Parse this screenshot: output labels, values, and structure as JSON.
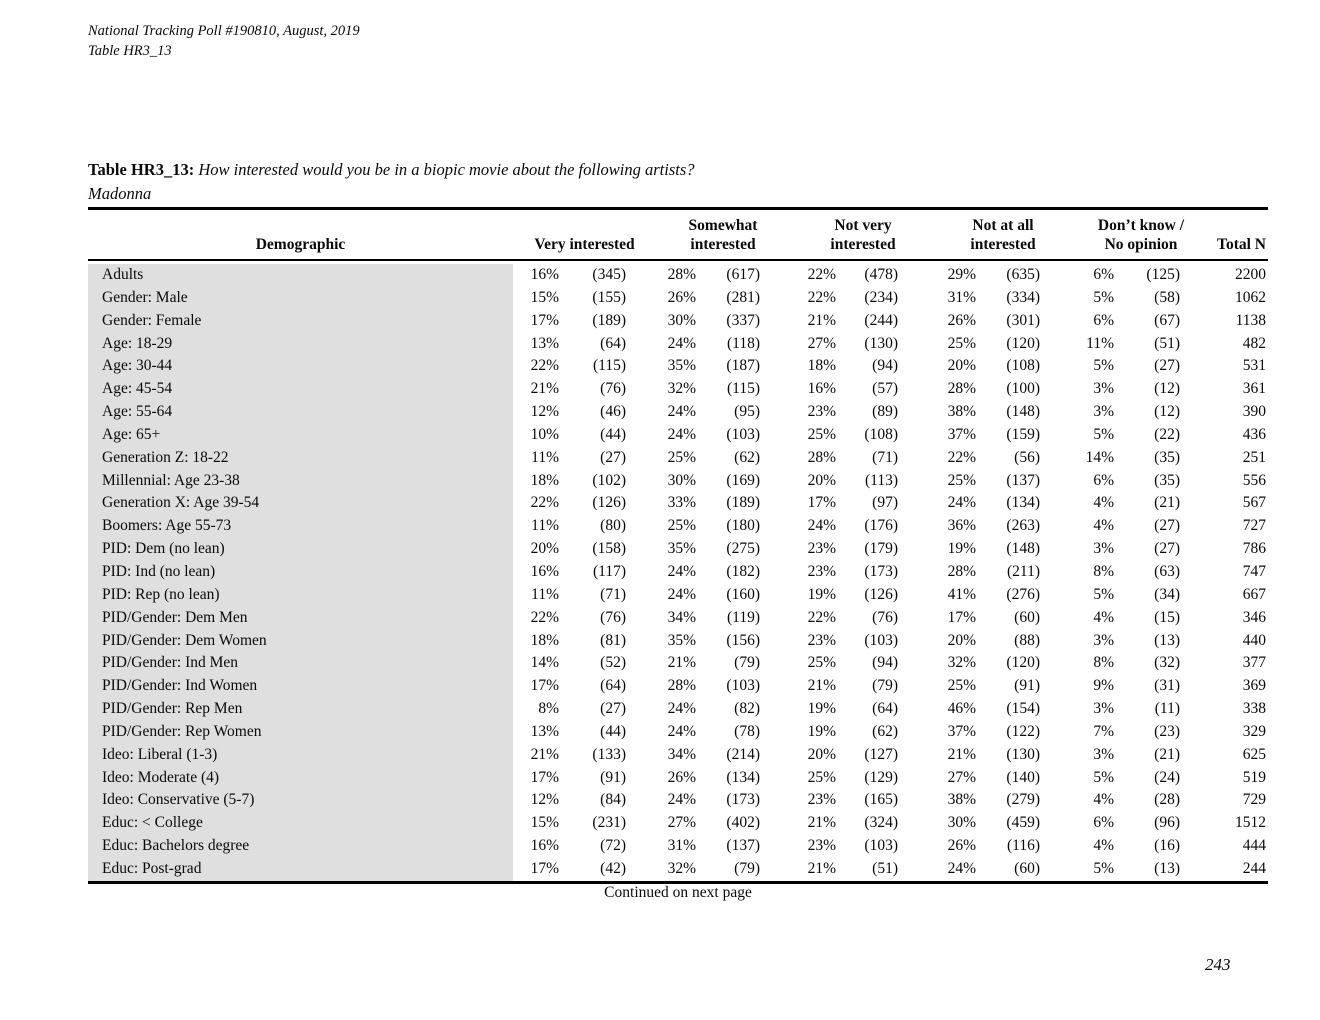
{
  "page_header": {
    "line1": "National Tracking Poll #190810, August, 2019",
    "line2": "Table HR3_13"
  },
  "title": {
    "label": "Table HR3_13:",
    "question": "How interested would you be in a biopic movie about the following artists?",
    "subject": "Madonna"
  },
  "table": {
    "columns": {
      "demographic": "Demographic",
      "groups": [
        {
          "lines": [
            "Very interested"
          ]
        },
        {
          "lines": [
            "Somewhat",
            "interested"
          ]
        },
        {
          "lines": [
            "Not very",
            "interested"
          ]
        },
        {
          "lines": [
            "Not at all",
            "interested"
          ]
        },
        {
          "lines": [
            "Don’t know /",
            "No opinion"
          ]
        }
      ],
      "total": "Total N"
    },
    "rows": [
      {
        "demographic": "Adults",
        "values": [
          "16%",
          "(345)",
          "28%",
          "(617)",
          "22%",
          "(478)",
          "29%",
          "(635)",
          "6%",
          "(125)",
          "2200"
        ]
      },
      {
        "demographic": "Gender: Male",
        "values": [
          "15%",
          "(155)",
          "26%",
          "(281)",
          "22%",
          "(234)",
          "31%",
          "(334)",
          "5%",
          "(58)",
          "1062"
        ]
      },
      {
        "demographic": "Gender: Female",
        "values": [
          "17%",
          "(189)",
          "30%",
          "(337)",
          "21%",
          "(244)",
          "26%",
          "(301)",
          "6%",
          "(67)",
          "1138"
        ]
      },
      {
        "demographic": "Age: 18-29",
        "values": [
          "13%",
          "(64)",
          "24%",
          "(118)",
          "27%",
          "(130)",
          "25%",
          "(120)",
          "11%",
          "(51)",
          "482"
        ]
      },
      {
        "demographic": "Age: 30-44",
        "values": [
          "22%",
          "(115)",
          "35%",
          "(187)",
          "18%",
          "(94)",
          "20%",
          "(108)",
          "5%",
          "(27)",
          "531"
        ]
      },
      {
        "demographic": "Age: 45-54",
        "values": [
          "21%",
          "(76)",
          "32%",
          "(115)",
          "16%",
          "(57)",
          "28%",
          "(100)",
          "3%",
          "(12)",
          "361"
        ]
      },
      {
        "demographic": "Age: 55-64",
        "values": [
          "12%",
          "(46)",
          "24%",
          "(95)",
          "23%",
          "(89)",
          "38%",
          "(148)",
          "3%",
          "(12)",
          "390"
        ]
      },
      {
        "demographic": "Age: 65+",
        "values": [
          "10%",
          "(44)",
          "24%",
          "(103)",
          "25%",
          "(108)",
          "37%",
          "(159)",
          "5%",
          "(22)",
          "436"
        ]
      },
      {
        "demographic": "Generation Z: 18-22",
        "values": [
          "11%",
          "(27)",
          "25%",
          "(62)",
          "28%",
          "(71)",
          "22%",
          "(56)",
          "14%",
          "(35)",
          "251"
        ]
      },
      {
        "demographic": "Millennial: Age 23-38",
        "values": [
          "18%",
          "(102)",
          "30%",
          "(169)",
          "20%",
          "(113)",
          "25%",
          "(137)",
          "6%",
          "(35)",
          "556"
        ]
      },
      {
        "demographic": "Generation X: Age 39-54",
        "values": [
          "22%",
          "(126)",
          "33%",
          "(189)",
          "17%",
          "(97)",
          "24%",
          "(134)",
          "4%",
          "(21)",
          "567"
        ]
      },
      {
        "demographic": "Boomers: Age 55-73",
        "values": [
          "11%",
          "(80)",
          "25%",
          "(180)",
          "24%",
          "(176)",
          "36%",
          "(263)",
          "4%",
          "(27)",
          "727"
        ]
      },
      {
        "demographic": "PID: Dem (no lean)",
        "values": [
          "20%",
          "(158)",
          "35%",
          "(275)",
          "23%",
          "(179)",
          "19%",
          "(148)",
          "3%",
          "(27)",
          "786"
        ]
      },
      {
        "demographic": "PID: Ind (no lean)",
        "values": [
          "16%",
          "(117)",
          "24%",
          "(182)",
          "23%",
          "(173)",
          "28%",
          "(211)",
          "8%",
          "(63)",
          "747"
        ]
      },
      {
        "demographic": "PID: Rep (no lean)",
        "values": [
          "11%",
          "(71)",
          "24%",
          "(160)",
          "19%",
          "(126)",
          "41%",
          "(276)",
          "5%",
          "(34)",
          "667"
        ]
      },
      {
        "demographic": "PID/Gender: Dem Men",
        "values": [
          "22%",
          "(76)",
          "34%",
          "(119)",
          "22%",
          "(76)",
          "17%",
          "(60)",
          "4%",
          "(15)",
          "346"
        ]
      },
      {
        "demographic": "PID/Gender: Dem Women",
        "values": [
          "18%",
          "(81)",
          "35%",
          "(156)",
          "23%",
          "(103)",
          "20%",
          "(88)",
          "3%",
          "(13)",
          "440"
        ]
      },
      {
        "demographic": "PID/Gender: Ind Men",
        "values": [
          "14%",
          "(52)",
          "21%",
          "(79)",
          "25%",
          "(94)",
          "32%",
          "(120)",
          "8%",
          "(32)",
          "377"
        ]
      },
      {
        "demographic": "PID/Gender: Ind Women",
        "values": [
          "17%",
          "(64)",
          "28%",
          "(103)",
          "21%",
          "(79)",
          "25%",
          "(91)",
          "9%",
          "(31)",
          "369"
        ]
      },
      {
        "demographic": "PID/Gender: Rep Men",
        "values": [
          "8%",
          "(27)",
          "24%",
          "(82)",
          "19%",
          "(64)",
          "46%",
          "(154)",
          "3%",
          "(11)",
          "338"
        ]
      },
      {
        "demographic": "PID/Gender: Rep Women",
        "values": [
          "13%",
          "(44)",
          "24%",
          "(78)",
          "19%",
          "(62)",
          "37%",
          "(122)",
          "7%",
          "(23)",
          "329"
        ]
      },
      {
        "demographic": "Ideo: Liberal (1-3)",
        "values": [
          "21%",
          "(133)",
          "34%",
          "(214)",
          "20%",
          "(127)",
          "21%",
          "(130)",
          "3%",
          "(21)",
          "625"
        ]
      },
      {
        "demographic": "Ideo: Moderate (4)",
        "values": [
          "17%",
          "(91)",
          "26%",
          "(134)",
          "25%",
          "(129)",
          "27%",
          "(140)",
          "5%",
          "(24)",
          "519"
        ]
      },
      {
        "demographic": "Ideo: Conservative (5-7)",
        "values": [
          "12%",
          "(84)",
          "24%",
          "(173)",
          "23%",
          "(165)",
          "38%",
          "(279)",
          "4%",
          "(28)",
          "729"
        ]
      },
      {
        "demographic": "Educ: < College",
        "values": [
          "15%",
          "(231)",
          "27%",
          "(402)",
          "21%",
          "(324)",
          "30%",
          "(459)",
          "6%",
          "(96)",
          "1512"
        ]
      },
      {
        "demographic": "Educ: Bachelors degree",
        "values": [
          "16%",
          "(72)",
          "31%",
          "(137)",
          "23%",
          "(103)",
          "26%",
          "(116)",
          "4%",
          "(16)",
          "444"
        ]
      },
      {
        "demographic": "Educ: Post-grad",
        "values": [
          "17%",
          "(42)",
          "32%",
          "(79)",
          "21%",
          "(51)",
          "24%",
          "(60)",
          "5%",
          "(13)",
          "244"
        ]
      }
    ]
  },
  "footer": {
    "continued": "Continued on next page",
    "page_number": "243"
  },
  "colors": {
    "row_shade": "#dfdfdf",
    "rule": "#000000",
    "background": "#ffffff"
  }
}
